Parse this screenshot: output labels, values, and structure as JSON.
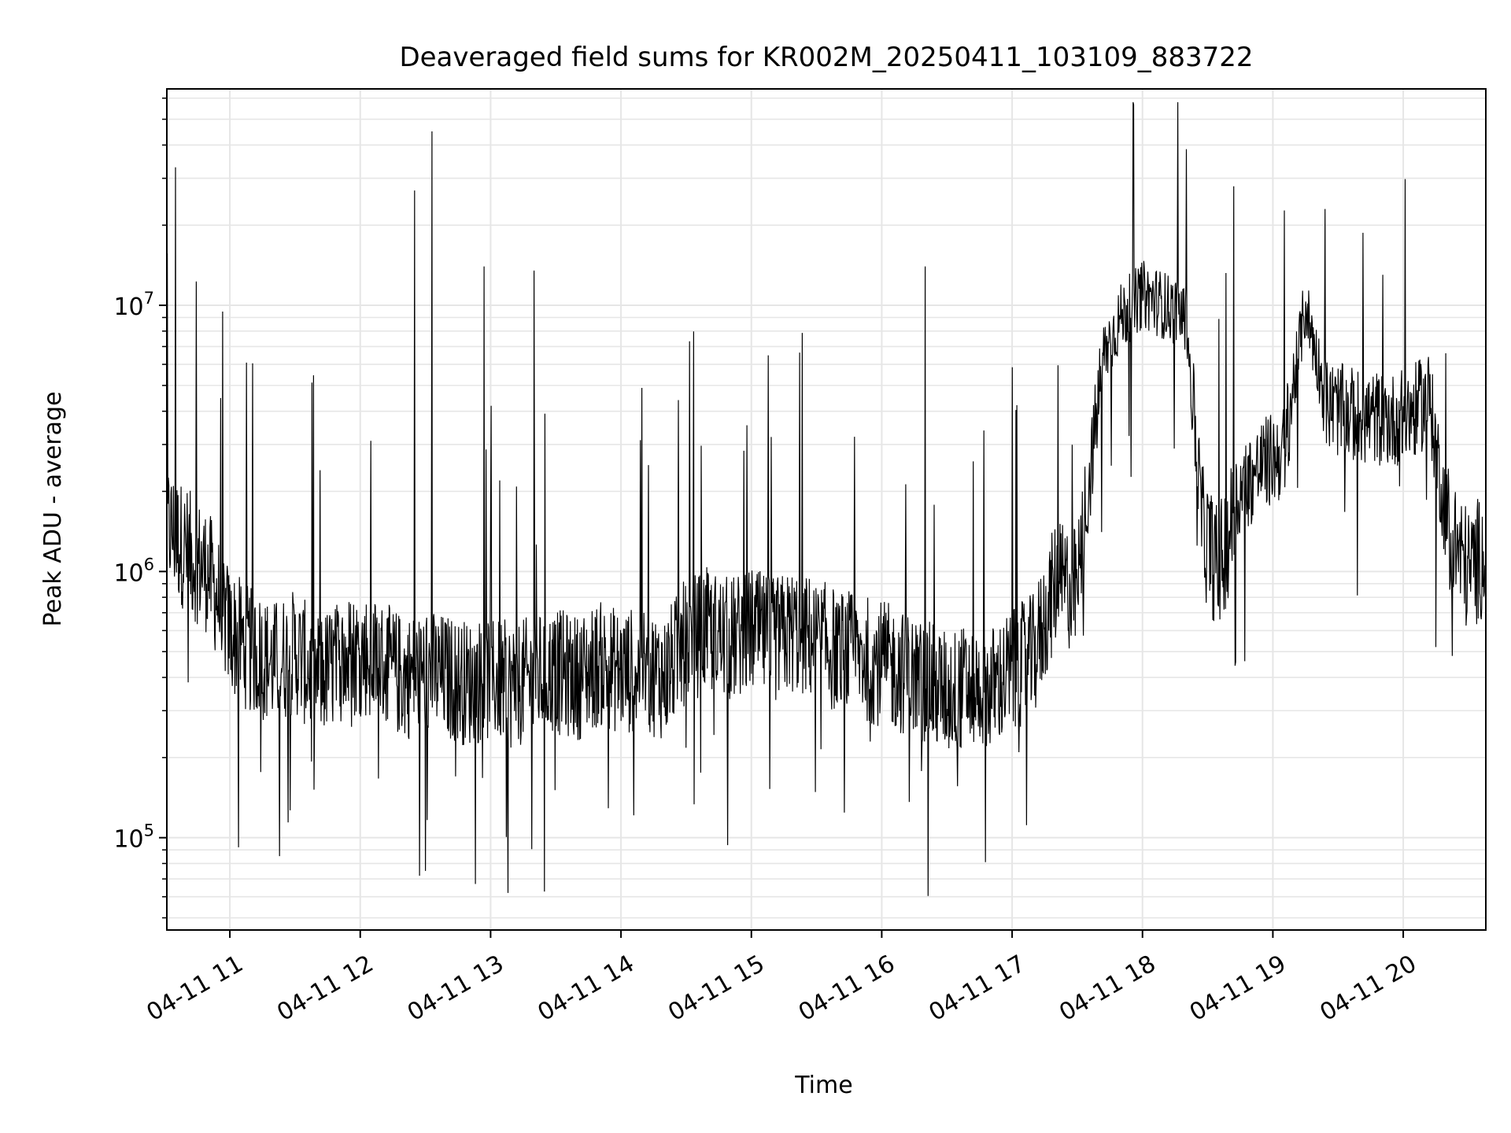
{
  "chart_data": {
    "type": "line",
    "title": "Deaveraged field sums for KR002M_20250411_103109_883722",
    "xlabel": "Time",
    "ylabel": "Peak ADU - average",
    "x_scale": "time",
    "y_scale": "log",
    "xlim": [
      "2025-04-11 10:31",
      "2025-04-11 20:38"
    ],
    "ylim": [
      45000,
      65000000
    ],
    "x_ticks": [
      "2025-04-11 11:00",
      "2025-04-11 12:00",
      "2025-04-11 13:00",
      "2025-04-11 14:00",
      "2025-04-11 15:00",
      "2025-04-11 16:00",
      "2025-04-11 17:00",
      "2025-04-11 18:00",
      "2025-04-11 19:00",
      "2025-04-11 20:00"
    ],
    "x_tick_labels": [
      "04-11 11",
      "04-11 12",
      "04-11 13",
      "04-11 14",
      "04-11 15",
      "04-11 16",
      "04-11 17",
      "04-11 18",
      "04-11 19",
      "04-11 20"
    ],
    "y_ticks": [
      100000,
      1000000,
      10000000
    ],
    "y_tick_labels": [
      {
        "base": "10",
        "exp": "5"
      },
      {
        "base": "10",
        "exp": "6"
      },
      {
        "base": "10",
        "exp": "7"
      }
    ],
    "grid": true,
    "grid_color": "#e6e6e6",
    "line_color": "#000000",
    "series": [
      {
        "x": [
          "2025-04-11 10:31",
          "2025-04-11 10:40",
          "2025-04-11 10:50",
          "2025-04-11 11:00",
          "2025-04-11 11:10",
          "2025-04-11 11:20",
          "2025-04-11 11:30",
          "2025-04-11 11:40",
          "2025-04-11 11:50",
          "2025-04-11 12:00",
          "2025-04-11 12:10",
          "2025-04-11 12:20",
          "2025-04-11 12:30",
          "2025-04-11 12:40",
          "2025-04-11 12:50",
          "2025-04-11 13:00",
          "2025-04-11 13:10",
          "2025-04-11 13:20",
          "2025-04-11 13:30",
          "2025-04-11 13:40",
          "2025-04-11 13:50",
          "2025-04-11 14:00",
          "2025-04-11 14:10",
          "2025-04-11 14:20",
          "2025-04-11 14:30",
          "2025-04-11 14:40",
          "2025-04-11 14:50",
          "2025-04-11 15:00",
          "2025-04-11 15:10",
          "2025-04-11 15:20",
          "2025-04-11 15:30",
          "2025-04-11 15:40",
          "2025-04-11 15:50",
          "2025-04-11 16:00",
          "2025-04-11 16:10",
          "2025-04-11 16:20",
          "2025-04-11 16:30",
          "2025-04-11 16:40",
          "2025-04-11 16:50",
          "2025-04-11 17:00",
          "2025-04-11 17:10",
          "2025-04-11 17:20",
          "2025-04-11 17:30",
          "2025-04-11 17:42",
          "2025-04-11 17:50",
          "2025-04-11 18:00",
          "2025-04-11 18:10",
          "2025-04-11 18:20",
          "2025-04-11 18:28",
          "2025-04-11 18:35",
          "2025-04-11 18:45",
          "2025-04-11 18:55",
          "2025-04-11 19:05",
          "2025-04-11 19:15",
          "2025-04-11 19:25",
          "2025-04-11 19:35",
          "2025-04-11 19:45",
          "2025-04-11 19:55",
          "2025-04-11 20:05",
          "2025-04-11 20:12",
          "2025-04-11 20:20",
          "2025-04-11 20:30",
          "2025-04-11 20:38"
        ],
        "y": [
          1500000,
          1200000,
          1000000,
          600000,
          500000,
          450000,
          500000,
          400000,
          450000,
          500000,
          450000,
          400000,
          420000,
          400000,
          380000,
          400000,
          370000,
          400000,
          420000,
          400000,
          450000,
          420000,
          430000,
          400000,
          550000,
          600000,
          550000,
          600000,
          550000,
          600000,
          550000,
          500000,
          480000,
          450000,
          420000,
          380000,
          350000,
          370000,
          360000,
          420000,
          480000,
          900000,
          850000,
          6500000,
          9000000,
          11000000,
          10000000,
          9000000,
          1400000,
          1000000,
          2000000,
          2500000,
          2800000,
          10000000,
          4200000,
          3900000,
          3800000,
          3700000,
          4000000,
          4500000,
          1500000,
          1000000,
          1200000
        ]
      }
    ],
    "spikes": [
      {
        "x": "2025-04-11 10:35",
        "y": 33000000
      },
      {
        "x": "2025-04-11 12:25",
        "y": 27000000
      },
      {
        "x": "2025-04-11 12:33",
        "y": 45000000
      },
      {
        "x": "2025-04-11 12:57",
        "y": 14000000
      },
      {
        "x": "2025-04-11 13:20",
        "y": 13500000
      },
      {
        "x": "2025-04-11 16:20",
        "y": 14000000
      },
      {
        "x": "2025-04-11 18:42",
        "y": 28000000
      },
      {
        "x": "2025-04-11 19:24",
        "y": 23000000
      }
    ],
    "dips": [
      {
        "x": "2025-04-11 12:53",
        "y": 67000
      },
      {
        "x": "2025-04-11 13:08",
        "y": 62000
      },
      {
        "x": "2025-04-11 11:04",
        "y": 92000
      },
      {
        "x": "2025-04-11 12:30",
        "y": 75000
      },
      {
        "x": "2025-04-11 18:35",
        "y": 740000
      },
      {
        "x": "2025-04-11 20:15",
        "y": 520000
      }
    ]
  }
}
